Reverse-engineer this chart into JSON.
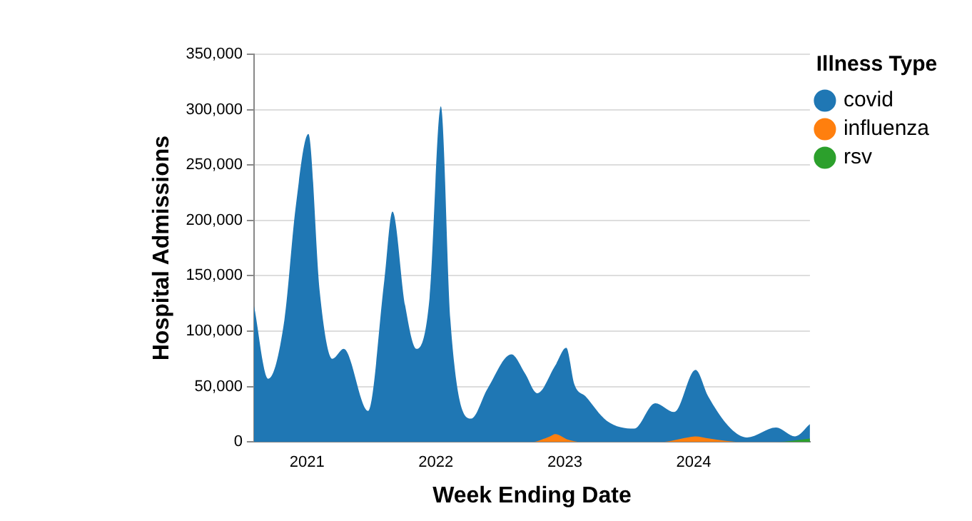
{
  "chart_data": {
    "type": "area",
    "xlabel": "Week Ending Date",
    "ylabel": "Hospital Admissions",
    "legend_title": "Illness Type",
    "xlim": [
      "2020-08-04",
      "2024-11-25"
    ],
    "xticks": [
      {
        "value": "2021-01-01",
        "label": "2021"
      },
      {
        "value": "2022-01-01",
        "label": "2022"
      },
      {
        "value": "2023-01-01",
        "label": "2023"
      },
      {
        "value": "2024-01-01",
        "label": "2024"
      }
    ],
    "ylim": [
      0,
      350000
    ],
    "yticks": [
      0,
      {
        "value": 50000,
        "label": "50,000"
      },
      {
        "value": 100000,
        "label": "100,000"
      },
      {
        "value": 150000,
        "label": "150,000"
      },
      {
        "value": 200000,
        "label": "200,000"
      },
      {
        "value": 250000,
        "label": "250,000"
      },
      {
        "value": 300000,
        "label": "300,000"
      },
      {
        "value": 350000,
        "label": "350,000"
      }
    ],
    "grid": "y",
    "legend": "top right",
    "marker": "none",
    "series": [
      {
        "name": "covid",
        "color": "#1f77b4",
        "x": [
          "2020-08-04",
          "2020-09-13",
          "2020-10-29",
          "2020-11-30",
          "2021-01-05",
          "2021-02-06",
          "2021-03-14",
          "2021-04-15",
          "2021-06-23",
          "2021-08-08",
          "2021-08-31",
          "2021-10-06",
          "2021-11-07",
          "2021-12-14",
          "2022-01-15",
          "2022-02-11",
          "2022-04-11",
          "2022-05-27",
          "2022-08-03",
          "2022-09-10",
          "2022-10-15",
          "2022-12-05",
          "2023-01-05",
          "2023-01-28",
          "2023-03-01",
          "2023-04-30",
          "2023-07-16",
          "2023-09-14",
          "2023-11-07",
          "2024-01-06",
          "2024-02-11",
          "2024-04-15",
          "2024-05-31",
          "2024-08-21",
          "2024-10-14",
          "2024-11-25"
        ],
        "values": [
          123000,
          57000,
          110000,
          212000,
          278000,
          136000,
          75000,
          84000,
          28000,
          146000,
          208000,
          123000,
          84000,
          130000,
          303000,
          110000,
          21000,
          48000,
          79000,
          62000,
          44000,
          69000,
          85000,
          52000,
          41000,
          19000,
          12000,
          35000,
          27000,
          65000,
          41000,
          12000,
          4000,
          13000,
          5000,
          16000
        ]
      },
      {
        "name": "influenza",
        "color": "#ff7f0e",
        "x": [
          "2020-08-04",
          "2022-10-01",
          "2022-11-20",
          "2022-12-05",
          "2023-01-10",
          "2023-02-15",
          "2023-10-01",
          "2023-12-15",
          "2024-01-05",
          "2024-02-15",
          "2024-04-01",
          "2024-05-15",
          "2024-11-25"
        ],
        "values": [
          0,
          0,
          5000,
          7000,
          2000,
          0,
          0,
          4000,
          5000,
          3000,
          1000,
          0,
          0
        ]
      },
      {
        "name": "rsv",
        "color": "#2ca02c",
        "x": [
          "2020-08-04",
          "2024-08-21",
          "2024-11-25"
        ],
        "values": [
          0,
          0,
          3000
        ]
      }
    ]
  }
}
